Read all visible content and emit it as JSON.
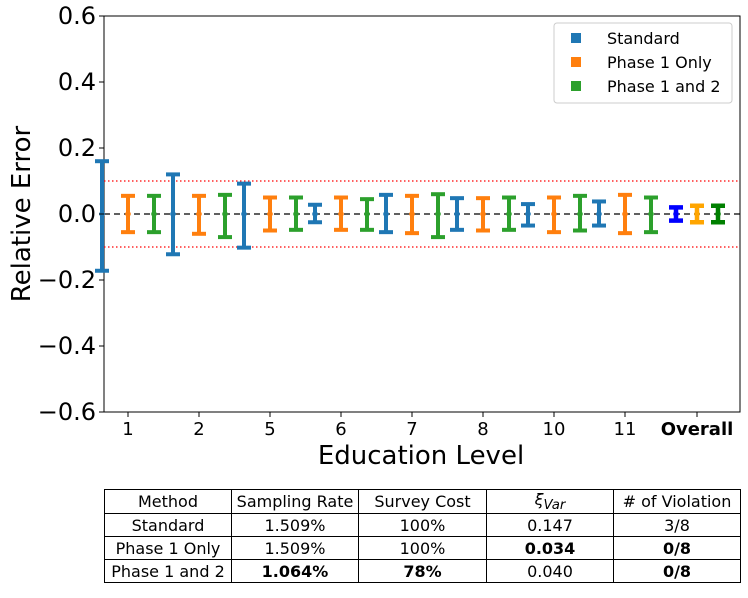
{
  "chart_data": {
    "type": "errorbar",
    "ylabel": "Relative Error",
    "xlabel": "Education Level",
    "ylim": [
      -0.6,
      0.6
    ],
    "yticks": [
      "0.6",
      "0.4",
      "0.2",
      "0.0",
      "−0.2",
      "−0.4",
      "−0.6"
    ],
    "ytick_values": [
      0.6,
      0.4,
      0.2,
      0.0,
      -0.2,
      -0.4,
      -0.6
    ],
    "categories": [
      "1",
      "2",
      "5",
      "6",
      "7",
      "8",
      "10",
      "11",
      "Overall"
    ],
    "threshold_lines": [
      0.1,
      -0.1
    ],
    "zero_line": 0.0,
    "legend_position": "top-right",
    "series": [
      {
        "name": "Standard",
        "color": "#1f77b4",
        "center": [
          0,
          0,
          0,
          0,
          0,
          0,
          0,
          0
        ],
        "lower": [
          -0.172,
          -0.122,
          -0.102,
          -0.025,
          -0.055,
          -0.048,
          -0.035,
          -0.035
        ],
        "upper": [
          0.16,
          0.12,
          0.092,
          0.028,
          0.058,
          0.048,
          0.03,
          0.038
        ]
      },
      {
        "name": "Phase 1 Only",
        "color": "#ff7f0e",
        "center": [
          0,
          0,
          0,
          0,
          0,
          0,
          0,
          0
        ],
        "lower": [
          -0.055,
          -0.06,
          -0.05,
          -0.048,
          -0.058,
          -0.05,
          -0.055,
          -0.058
        ],
        "upper": [
          0.055,
          0.055,
          0.05,
          0.05,
          0.055,
          0.048,
          0.05,
          0.058
        ]
      },
      {
        "name": "Phase 1 and 2",
        "color": "#2ca02c",
        "center": [
          0,
          0,
          0,
          0,
          0,
          0,
          0,
          0
        ],
        "lower": [
          -0.055,
          -0.07,
          -0.048,
          -0.048,
          -0.07,
          -0.048,
          -0.05,
          -0.055
        ],
        "upper": [
          0.055,
          0.058,
          0.05,
          0.045,
          0.06,
          0.05,
          0.055,
          0.05
        ]
      }
    ],
    "overall": [
      {
        "name": "Standard",
        "color": "#0000ff",
        "center": 0,
        "lower": -0.02,
        "upper": 0.02
      },
      {
        "name": "Phase 1 Only",
        "color": "#ffa500",
        "center": 0,
        "lower": -0.025,
        "upper": 0.025
      },
      {
        "name": "Phase 1 and 2",
        "color": "#008000",
        "center": 0,
        "lower": -0.025,
        "upper": 0.025
      }
    ]
  },
  "table": {
    "headers": [
      "Method",
      "Sampling Rate",
      "Survey Cost",
      "ξ",
      "Var",
      "# of Violation"
    ],
    "rows": [
      {
        "method": "Standard",
        "rate": "1.509%",
        "cost": "100%",
        "xi": "0.147",
        "viol": "3/8"
      },
      {
        "method": "Phase 1 Only",
        "rate": "1.509%",
        "cost": "100%",
        "xi": "0.034",
        "viol": "0/8"
      },
      {
        "method": "Phase 1 and 2",
        "rate": "1.064%",
        "cost": "78%",
        "xi": "0.040",
        "viol": "0/8"
      }
    ]
  }
}
